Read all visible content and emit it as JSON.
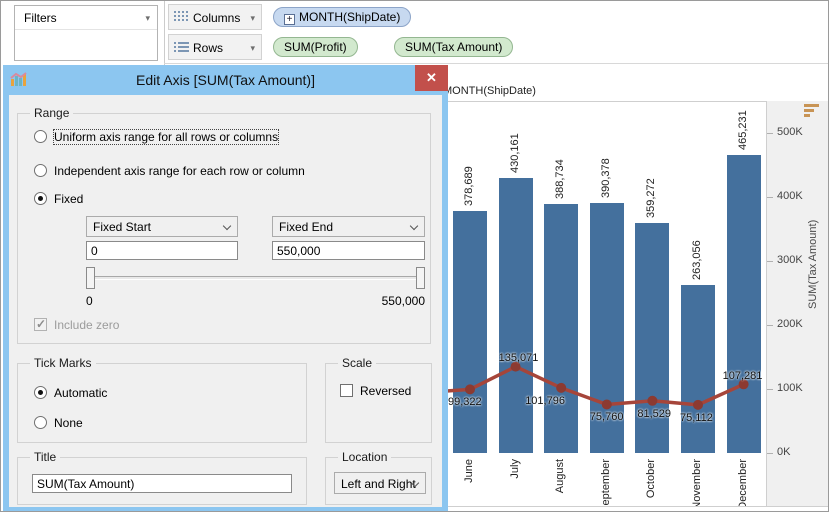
{
  "shelves": {
    "filters_label": "Filters",
    "columns_label": "Columns",
    "rows_label": "Rows",
    "columns_pills": [
      {
        "text": "MONTH(ShipDate)",
        "expand_glyph": "+"
      }
    ],
    "rows_pills": [
      {
        "text": "SUM(Profit)"
      },
      {
        "text": "SUM(Tax Amount)"
      }
    ]
  },
  "dialog": {
    "title": "Edit Axis [SUM(Tax Amount)]",
    "close_glyph": "✕",
    "range": {
      "legend": "Range",
      "options": [
        {
          "label": "Uniform axis range for all rows or columns",
          "selected": false,
          "focused": true
        },
        {
          "label": "Independent axis range for each row or column",
          "selected": false,
          "focused": false
        },
        {
          "label": "Fixed",
          "selected": true,
          "focused": false
        }
      ],
      "fixed_start_dropdown": "Fixed Start",
      "fixed_end_dropdown": "Fixed End",
      "fixed_start_value": "0",
      "fixed_end_value": "550,000",
      "slider_min_label": "0",
      "slider_max_label": "550,000",
      "include_zero_label": "Include zero",
      "include_zero_checked": true,
      "include_zero_disabled": true
    },
    "tick_marks": {
      "legend": "Tick Marks",
      "options": [
        {
          "label": "Automatic",
          "selected": true
        },
        {
          "label": "None",
          "selected": false
        }
      ]
    },
    "scale": {
      "legend": "Scale",
      "reversed_label": "Reversed",
      "reversed_checked": false
    },
    "title_group": {
      "legend": "Title",
      "value": "SUM(Tax Amount)"
    },
    "location_group": {
      "legend": "Location",
      "value": "Left and Right"
    }
  },
  "chart_data": {
    "type": "combo",
    "column_header": "MONTH(ShipDate)",
    "categories": [
      "June",
      "July",
      "August",
      "September",
      "October",
      "November",
      "December"
    ],
    "series": [
      {
        "name": "SUM(Tax Amount)",
        "type": "bar",
        "values": [
          378689,
          430161,
          388734,
          390378,
          359272,
          263056,
          465231
        ]
      },
      {
        "name": "SUM(Profit)",
        "type": "line",
        "values": [
          99322,
          135071,
          101796,
          75760,
          81529,
          75112,
          107281
        ]
      }
    ],
    "y_axis": {
      "title": "SUM(Tax Amount)",
      "position": "right",
      "range": [
        0,
        550000
      ],
      "tick_values": [
        0,
        100000,
        200000,
        300000,
        400000,
        500000
      ],
      "tick_labels": [
        "0K",
        "100K",
        "200K",
        "300K",
        "400K",
        "500K"
      ]
    },
    "grid": false,
    "data_labels": true
  },
  "colors": {
    "bar": "#44709D",
    "line": "#A6453A",
    "marker": "#8C3A31",
    "dialog_titlebar": "#8CC6F0",
    "close_button": "#C2504B",
    "pill_blue": "#C7D9F0",
    "pill_green": "#D2E9CE",
    "sort_icon": "#C89455"
  }
}
